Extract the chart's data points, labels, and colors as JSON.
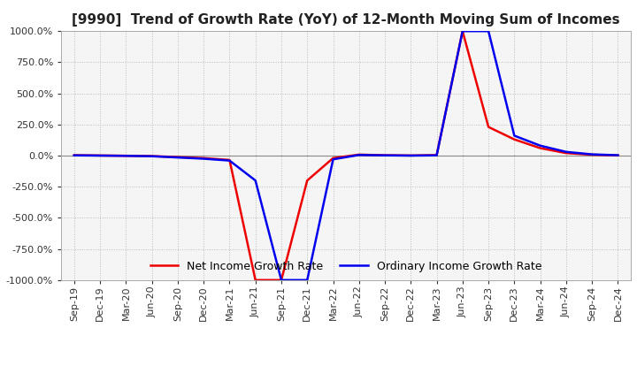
{
  "title": "[9990]  Trend of Growth Rate (YoY) of 12-Month Moving Sum of Incomes",
  "ylim": [
    -1000,
    1000
  ],
  "yticks": [
    -1000,
    -750,
    -500,
    -250,
    0,
    250,
    500,
    750,
    1000
  ],
  "background_color": "#ffffff",
  "plot_bg_color": "#f5f5f5",
  "grid_color": "#bbbbbb",
  "ordinary_color": "#0000ee",
  "net_color": "#ee0000",
  "legend_labels": [
    "Ordinary Income Growth Rate",
    "Net Income Growth Rate"
  ],
  "x_labels": [
    "Sep-19",
    "Dec-19",
    "Mar-20",
    "Jun-20",
    "Sep-20",
    "Dec-20",
    "Mar-21",
    "Jun-21",
    "Sep-21",
    "Dec-21",
    "Mar-22",
    "Jun-22",
    "Sep-22",
    "Dec-22",
    "Mar-23",
    "Jun-23",
    "Sep-23",
    "Dec-23",
    "Mar-24",
    "Jun-24",
    "Sep-24",
    "Dec-24"
  ],
  "ordinary_y": [
    2,
    0,
    -2,
    -5,
    -15,
    -25,
    -40,
    -200,
    -1000,
    -1000,
    -30,
    5,
    2,
    0,
    2,
    1000,
    1000,
    160,
    80,
    30,
    10,
    3
  ],
  "net_y": [
    3,
    1,
    -1,
    -4,
    -12,
    -20,
    -35,
    -1000,
    -1000,
    -200,
    -20,
    8,
    3,
    1,
    4,
    1000,
    230,
    130,
    60,
    20,
    7,
    2
  ]
}
